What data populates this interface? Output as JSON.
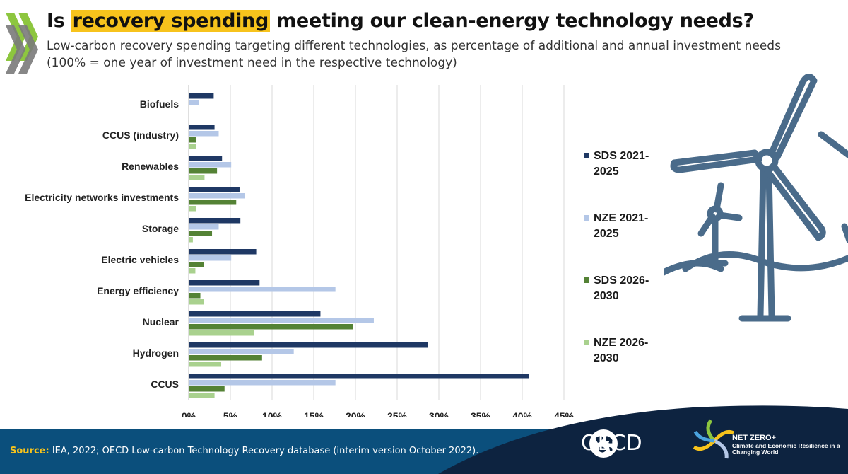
{
  "header": {
    "title_pre": "Is ",
    "title_highlight": "recovery spending",
    "title_post": " meeting our clean-energy technology needs?",
    "subtitle": "Low-carbon recovery spending targeting different technologies, as percentage of additional and annual investment needs (100% = one year of investment need in the respective technology)"
  },
  "chart_data": {
    "type": "bar",
    "orientation": "horizontal",
    "categories": [
      "Biofuels",
      "CCUS (industry)",
      "Renewables",
      "Electricity networks investments",
      "Storage",
      "Electric vehicles",
      "Energy efficiency",
      "Nuclear",
      "Hydrogen",
      "CCUS"
    ],
    "series": [
      {
        "name": "SDS 2021-2025",
        "color": "#1f3864",
        "values": [
          3.0,
          3.1,
          4.0,
          6.1,
          6.2,
          8.1,
          8.5,
          15.8,
          28.7,
          40.8
        ]
      },
      {
        "name": "NZE 2021-2025",
        "color": "#b4c7e7",
        "values": [
          1.2,
          3.6,
          5.1,
          6.7,
          3.6,
          5.1,
          17.6,
          22.2,
          12.6,
          17.6
        ]
      },
      {
        "name": "SDS 2026-2030",
        "color": "#548235",
        "values": [
          0,
          0.9,
          3.4,
          5.7,
          2.8,
          1.8,
          1.4,
          19.7,
          8.8,
          4.3
        ]
      },
      {
        "name": "NZE 2026-2030",
        "color": "#a9d18e",
        "values": [
          0,
          0.9,
          1.9,
          0.9,
          0.5,
          0.8,
          1.8,
          7.8,
          3.9,
          3.1
        ]
      }
    ],
    "x_ticks": [
      "0%",
      "5%",
      "10%",
      "15%",
      "20%",
      "25%",
      "30%",
      "35%",
      "40%",
      "45%"
    ],
    "xlim": [
      0,
      45
    ],
    "grid": "vertical",
    "legend": "right"
  },
  "legend_items": [
    {
      "line1": "SDS 2021-",
      "line2": "2025",
      "color": "#1f3864"
    },
    {
      "line1": "NZE 2021-",
      "line2": "2025",
      "color": "#b4c7e7"
    },
    {
      "line1": "SDS 2026-",
      "line2": "2030",
      "color": "#548235"
    },
    {
      "line1": "NZE 2026-",
      "line2": "2030",
      "color": "#a9d18e"
    }
  ],
  "footer": {
    "source_label": "Source:",
    "source_text": " IEA, 2022; OECD Low-carbon Technology Recovery database (interim version October 2022).",
    "oecd_logo_text": "OECD",
    "netzero_title": "NET ZERO+",
    "netzero_subtitle": "Climate and Economic Resilience in a Changing World"
  },
  "colors": {
    "accent": "#f7c31c",
    "footer_blue": "#0b4f7c",
    "footer_navy": "#0d2340",
    "chevron_green": "#8dc63f",
    "chevron_grey": "#7a7a7a",
    "turbine_blue": "#4a6b8a"
  },
  "icons": [
    "chevron-right-icon",
    "wind-turbine-icon",
    "globe-icon",
    "netzero-swirl-icon"
  ]
}
